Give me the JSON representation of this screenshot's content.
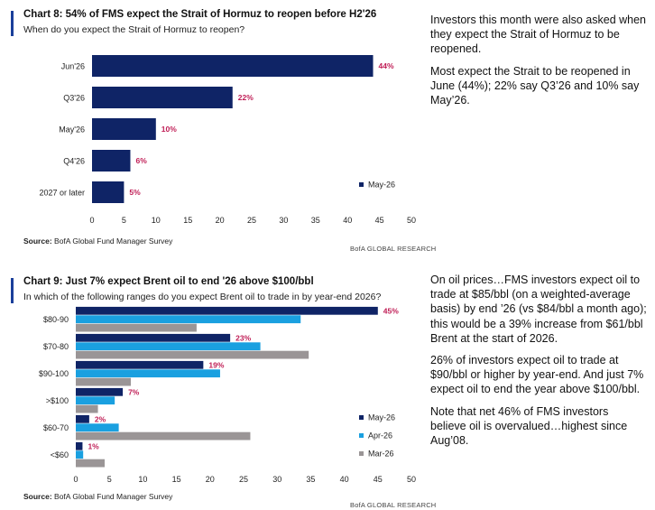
{
  "chart_data": [
    {
      "type": "bar",
      "orientation": "horizontal",
      "title": "Chart 8: 54% of FMS expect the Strait of Hormuz to reopen before H2'26",
      "subtitle": "When do you expect the Strait of Hormuz to reopen?",
      "categories": [
        "Jun'26",
        "Q3'26",
        "May'26",
        "Q4'26",
        "2027 or later"
      ],
      "series": [
        {
          "name": "May-26",
          "values": [
            44,
            22,
            10,
            6,
            5
          ],
          "color": "#0f2466"
        }
      ],
      "data_labels": [
        "44%",
        "22%",
        "10%",
        "6%",
        "5%"
      ],
      "xlim": [
        0,
        50
      ],
      "xticks": [
        0,
        5,
        10,
        15,
        20,
        25,
        30,
        35,
        40,
        45,
        50
      ],
      "legend_position": "right",
      "source": "Source:",
      "source_text": "BofA Global Fund Manager Survey",
      "brand": "BofA GLOBAL RESEARCH"
    },
    {
      "type": "bar",
      "orientation": "horizontal",
      "title": "Chart 9: Just 7% expect Brent oil to end '26 above $100/bbl",
      "subtitle": "In which of the following ranges do you expect Brent oil to trade in by year-end 2026?",
      "categories": [
        "$80-90",
        "$70-80",
        "$90-100",
        ">$100",
        "$60-70",
        "<$60"
      ],
      "series": [
        {
          "name": "May-26",
          "values": [
            45,
            23,
            19,
            7,
            2,
            1
          ],
          "color": "#0f2466"
        },
        {
          "name": "Apr-26",
          "values": [
            33.5,
            27.5,
            21.5,
            5.8,
            6.4,
            1.1
          ],
          "color": "#1aa0e0"
        },
        {
          "name": "Mar-26",
          "values": [
            18,
            34.7,
            8.2,
            3.3,
            26,
            4.3
          ],
          "color": "#9a9596"
        }
      ],
      "data_labels": [
        "45%",
        "23%",
        "19%",
        "7%",
        "2%",
        "1%"
      ],
      "xlim": [
        0,
        50
      ],
      "xticks": [
        0,
        5,
        10,
        15,
        20,
        25,
        30,
        35,
        40,
        45,
        50
      ],
      "legend_position": "right",
      "source": "Source:",
      "source_text": "BofA Global Fund Manager Survey",
      "brand": "BofA GLOBAL RESEARCH"
    }
  ],
  "commentary1": [
    "Investors this month were also asked when they expect the Strait of Hormuz to be reopened.",
    "Most expect the Strait to be reopened in June (44%); 22% say Q3’26 and 10% say May’26."
  ],
  "commentary2": [
    "On oil prices…FMS investors expect oil to trade at $85/bbl (on a weighted-average basis) by end ’26 (vs $84/bbl a month ago); this would be a 39% increase from $61/bbl Brent at the start of 2026.",
    "26% of investors expect oil to trade at $90/bbl or higher by year-end. And just 7% expect oil to end the year above $100/bbl.",
    "Note that net 46% of FMS investors believe oil is overvalued…highest since Aug’08."
  ],
  "colors": {
    "accent_bar": "#1a3f9a",
    "data_label": "#c01e56"
  }
}
